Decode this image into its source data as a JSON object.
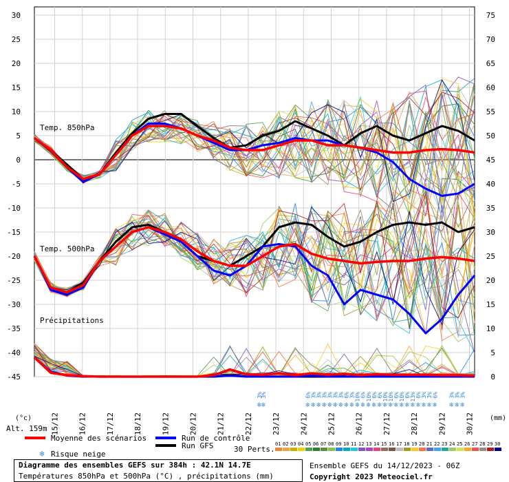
{
  "chart_data": {
    "type": "line",
    "title": "Diagramme des ensembles GEFS sur 384h : 42.1N 14.7E",
    "subtitle": "Températures 850hPa et 500hPa (°C) , précipitations (mm)",
    "left_axis": {
      "label": "(°c)",
      "ticks": [
        30,
        25,
        20,
        15,
        10,
        5,
        0,
        -5,
        -10,
        -15,
        -20,
        -25,
        -30,
        -35,
        -40,
        -45
      ],
      "range": [
        -45,
        30
      ]
    },
    "right_axis": {
      "label": "(mm)",
      "ticks": [
        75,
        70,
        65,
        60,
        55,
        50,
        45,
        40,
        35,
        30,
        25,
        20,
        15,
        10,
        5,
        0
      ],
      "range": [
        0,
        75
      ]
    },
    "x_ticks": [
      "15/12",
      "16/12",
      "17/12",
      "18/12",
      "19/12",
      "20/12",
      "21/12",
      "22/12",
      "23/12",
      "24/12",
      "25/12",
      "26/12",
      "27/12",
      "28/12",
      "29/12",
      "30/12"
    ],
    "altitude": "Alt. 159m",
    "panel_labels": {
      "t850": "Temp. 850hPa",
      "t500": "Temp. 500hPa",
      "precip": "Précipitations"
    },
    "snow_risk": [
      {
        "x": 7.4,
        "pct": "3%"
      },
      {
        "x": 7.55,
        "pct": "3%"
      },
      {
        "x": 9.15,
        "pct": "6%"
      },
      {
        "x": 9.35,
        "pct": "3%"
      },
      {
        "x": 9.55,
        "pct": "3%"
      },
      {
        "x": 9.75,
        "pct": "3%"
      },
      {
        "x": 9.95,
        "pct": "3%"
      },
      {
        "x": 10.15,
        "pct": "3%"
      },
      {
        "x": 10.35,
        "pct": "3%"
      },
      {
        "x": 10.55,
        "pct": "6%"
      },
      {
        "x": 10.75,
        "pct": "3%"
      },
      {
        "x": 10.95,
        "pct": "10%"
      },
      {
        "x": 11.15,
        "pct": "6%"
      },
      {
        "x": 11.35,
        "pct": "10%"
      },
      {
        "x": 11.55,
        "pct": "6%"
      },
      {
        "x": 11.75,
        "pct": "6%"
      },
      {
        "x": 11.95,
        "pct": "10%"
      },
      {
        "x": 12.15,
        "pct": "10%"
      },
      {
        "x": 12.35,
        "pct": "6%"
      },
      {
        "x": 12.55,
        "pct": "10%"
      },
      {
        "x": 12.75,
        "pct": "6%"
      },
      {
        "x": 12.95,
        "pct": "13%"
      },
      {
        "x": 13.15,
        "pct": "6%"
      },
      {
        "x": 13.35,
        "pct": "3%"
      },
      {
        "x": 13.55,
        "pct": "3%"
      },
      {
        "x": 13.75,
        "pct": "6%"
      },
      {
        "x": 14.35,
        "pct": "3%"
      },
      {
        "x": 14.55,
        "pct": "3%"
      },
      {
        "x": 14.75,
        "pct": "3%"
      }
    ],
    "series": [
      {
        "name": "Moyenne des scénarios",
        "color": "#ff0000",
        "t850": [
          4.5,
          2,
          -1.5,
          -4,
          -3,
          1,
          5,
          7,
          7,
          6.5,
          5,
          4,
          2.5,
          2,
          2,
          3,
          4,
          4,
          3,
          3,
          2.5,
          2,
          1.5,
          1.5,
          2,
          2.2,
          2,
          1.5
        ],
        "t500": [
          -20,
          -26.5,
          -27.5,
          -26,
          -21,
          -18,
          -15,
          -14,
          -15,
          -16.5,
          -19,
          -21,
          -22,
          -22,
          -20,
          -18,
          -17.5,
          -19.5,
          -20.5,
          -21,
          -21.5,
          -21.2,
          -21,
          -21,
          -20.5,
          -20.2,
          -20.5,
          -21
        ],
        "precip": [
          4,
          0.8,
          0.3,
          0.1,
          0,
          0,
          0,
          0,
          0,
          0,
          0,
          0.3,
          1.5,
          0.5,
          0.4,
          0.7,
          0.3,
          0.7,
          0.4,
          0.6,
          0.3,
          0.5,
          0.4,
          0.4,
          0.4,
          0.3,
          0.3,
          0.2
        ]
      },
      {
        "name": "Run de contrôle",
        "color": "#0000ff",
        "t850": [
          4.5,
          2,
          -1.5,
          -4.5,
          -3,
          1,
          5,
          7.5,
          7.5,
          6.5,
          5,
          3.5,
          2,
          2,
          3,
          3.5,
          4.5,
          4,
          4,
          3,
          2.5,
          1.5,
          -0.5,
          -4,
          -6,
          -7.5,
          -7,
          -5
        ],
        "t500": [
          -20,
          -27,
          -28,
          -26.5,
          -21,
          -18,
          -15,
          -14,
          -15.5,
          -17,
          -20,
          -23,
          -24,
          -22,
          -18,
          -17.5,
          -18,
          -22,
          -24,
          -30,
          -27,
          -28,
          -29,
          -32,
          -36,
          -33,
          -28,
          -24
        ],
        "precip": [
          4,
          1,
          0.2,
          0,
          0,
          0,
          0,
          0,
          0,
          0,
          0,
          0,
          0.2,
          0,
          0,
          0,
          0,
          0.2,
          0,
          0,
          0,
          0,
          0,
          0,
          0,
          0,
          0,
          0
        ]
      },
      {
        "name": "Run GFS",
        "color": "#000000",
        "t850": [
          4.5,
          2,
          -1,
          -4,
          -3,
          1.5,
          5.5,
          8.5,
          9.5,
          9.5,
          7,
          4.5,
          2.5,
          3,
          5,
          6,
          8,
          6.5,
          5,
          3,
          5.5,
          7,
          5,
          4,
          5.5,
          7,
          6,
          4
        ],
        "t500": [
          -20,
          -26.5,
          -27.5,
          -25.5,
          -21,
          -17,
          -14,
          -13.5,
          -15,
          -17,
          -20,
          -21,
          -22,
          -20,
          -18,
          -14,
          -13,
          -13.5,
          -16,
          -18,
          -17,
          -15,
          -13.5,
          -13,
          -13.5,
          -13,
          -15,
          -14
        ],
        "precip": [
          4,
          1,
          0.3,
          0,
          0,
          0,
          0,
          0,
          0,
          0,
          0,
          0,
          0.3,
          0,
          0,
          0,
          0,
          0,
          0,
          0,
          0,
          0,
          0,
          0,
          0,
          0,
          0,
          0.2
        ]
      }
    ],
    "grid": true
  },
  "legend": {
    "mean": "Moyenne des scénarios",
    "control": "Run de contrôle",
    "gfs": "Run GFS",
    "snow": "Risque neige",
    "perts_label": "30 Perts.",
    "perts": [
      "01",
      "02",
      "03",
      "04",
      "05",
      "06",
      "07",
      "08",
      "09",
      "10",
      "11",
      "12",
      "13",
      "14",
      "15",
      "16",
      "17",
      "18",
      "19",
      "20",
      "21",
      "22",
      "23",
      "24",
      "25",
      "26",
      "27",
      "28",
      "29",
      "30"
    ],
    "pert_colors": [
      "#e8873a",
      "#f2a04a",
      "#c8b400",
      "#f0d000",
      "#4ea34e",
      "#2e7d32",
      "#5a8f3a",
      "#8bc34a",
      "#1e88e5",
      "#00acc1",
      "#26c6da",
      "#7e57c2",
      "#ab47bc",
      "#ec407a",
      "#8d6e63",
      "#795548",
      "#bdbdbd",
      "#9e9d24",
      "#ffca28",
      "#ff7043",
      "#5c6bc0",
      "#42a5f5",
      "#26a69a",
      "#9ccc65",
      "#d4e157",
      "#ffa726",
      "#ef5350",
      "#a1887f",
      "#b71c1c",
      "#000080"
    ]
  },
  "footer": {
    "title": "Diagramme des ensembles GEFS sur 384h : 42.1N 14.7E",
    "subtitle": "Températures 850hPa et 500hPa (°C) , précipitations (mm)",
    "run": "Ensemble GEFS du 14/12/2023 - 06Z",
    "copyright": "Copyright 2023 Meteociel.fr"
  }
}
